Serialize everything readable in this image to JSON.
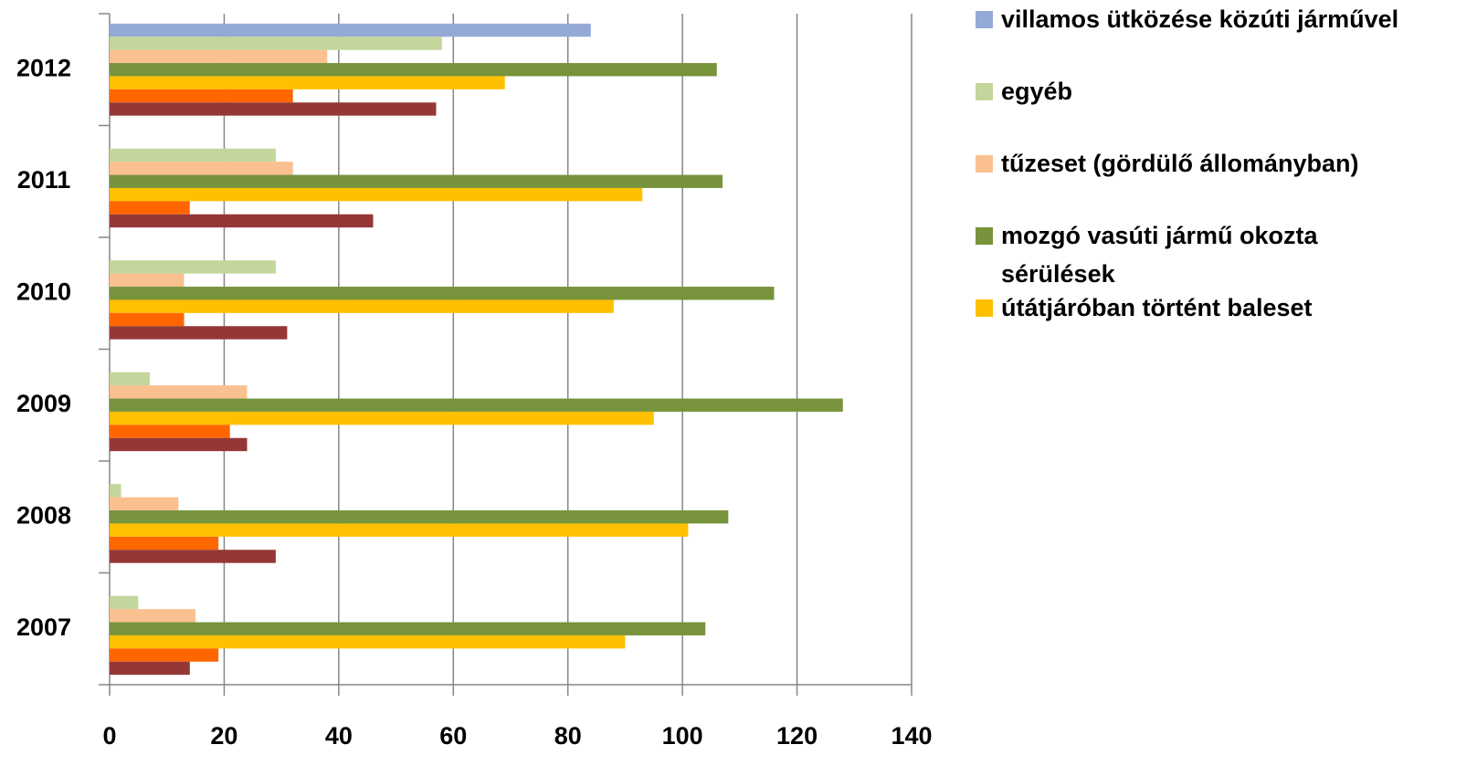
{
  "chart_data": {
    "type": "bar",
    "orientation": "horizontal",
    "categories": [
      "2007",
      "2008",
      "2009",
      "2010",
      "2011",
      "2012"
    ],
    "series": [
      {
        "name": "villamos ütközése közúti járművel",
        "color": "#95a9d6",
        "values": [
          0,
          0,
          0,
          0,
          0,
          84
        ]
      },
      {
        "name": "egyéb",
        "color": "#c3d69b",
        "values": [
          5,
          2,
          7,
          29,
          29,
          58
        ]
      },
      {
        "name": "tűzeset (gördülő állományban)",
        "color": "#fac090",
        "values": [
          15,
          12,
          24,
          13,
          32,
          38
        ]
      },
      {
        "name": "mozgó vasúti jármű okozta sérülések",
        "color": "#77933c",
        "values": [
          104,
          108,
          128,
          116,
          107,
          106
        ]
      },
      {
        "name": "útátjáróban történt baleset",
        "color": "#ffc000",
        "values": [
          90,
          101,
          95,
          88,
          93,
          69
        ]
      },
      {
        "color": "#ff6600",
        "values": [
          19,
          19,
          21,
          13,
          14,
          32
        ]
      },
      {
        "color": "#953735",
        "values": [
          14,
          29,
          24,
          31,
          46,
          57
        ]
      }
    ],
    "xlim": [
      0,
      140
    ],
    "xticks": [
      0,
      20,
      40,
      60,
      80,
      100,
      120,
      140
    ],
    "grid": true
  }
}
